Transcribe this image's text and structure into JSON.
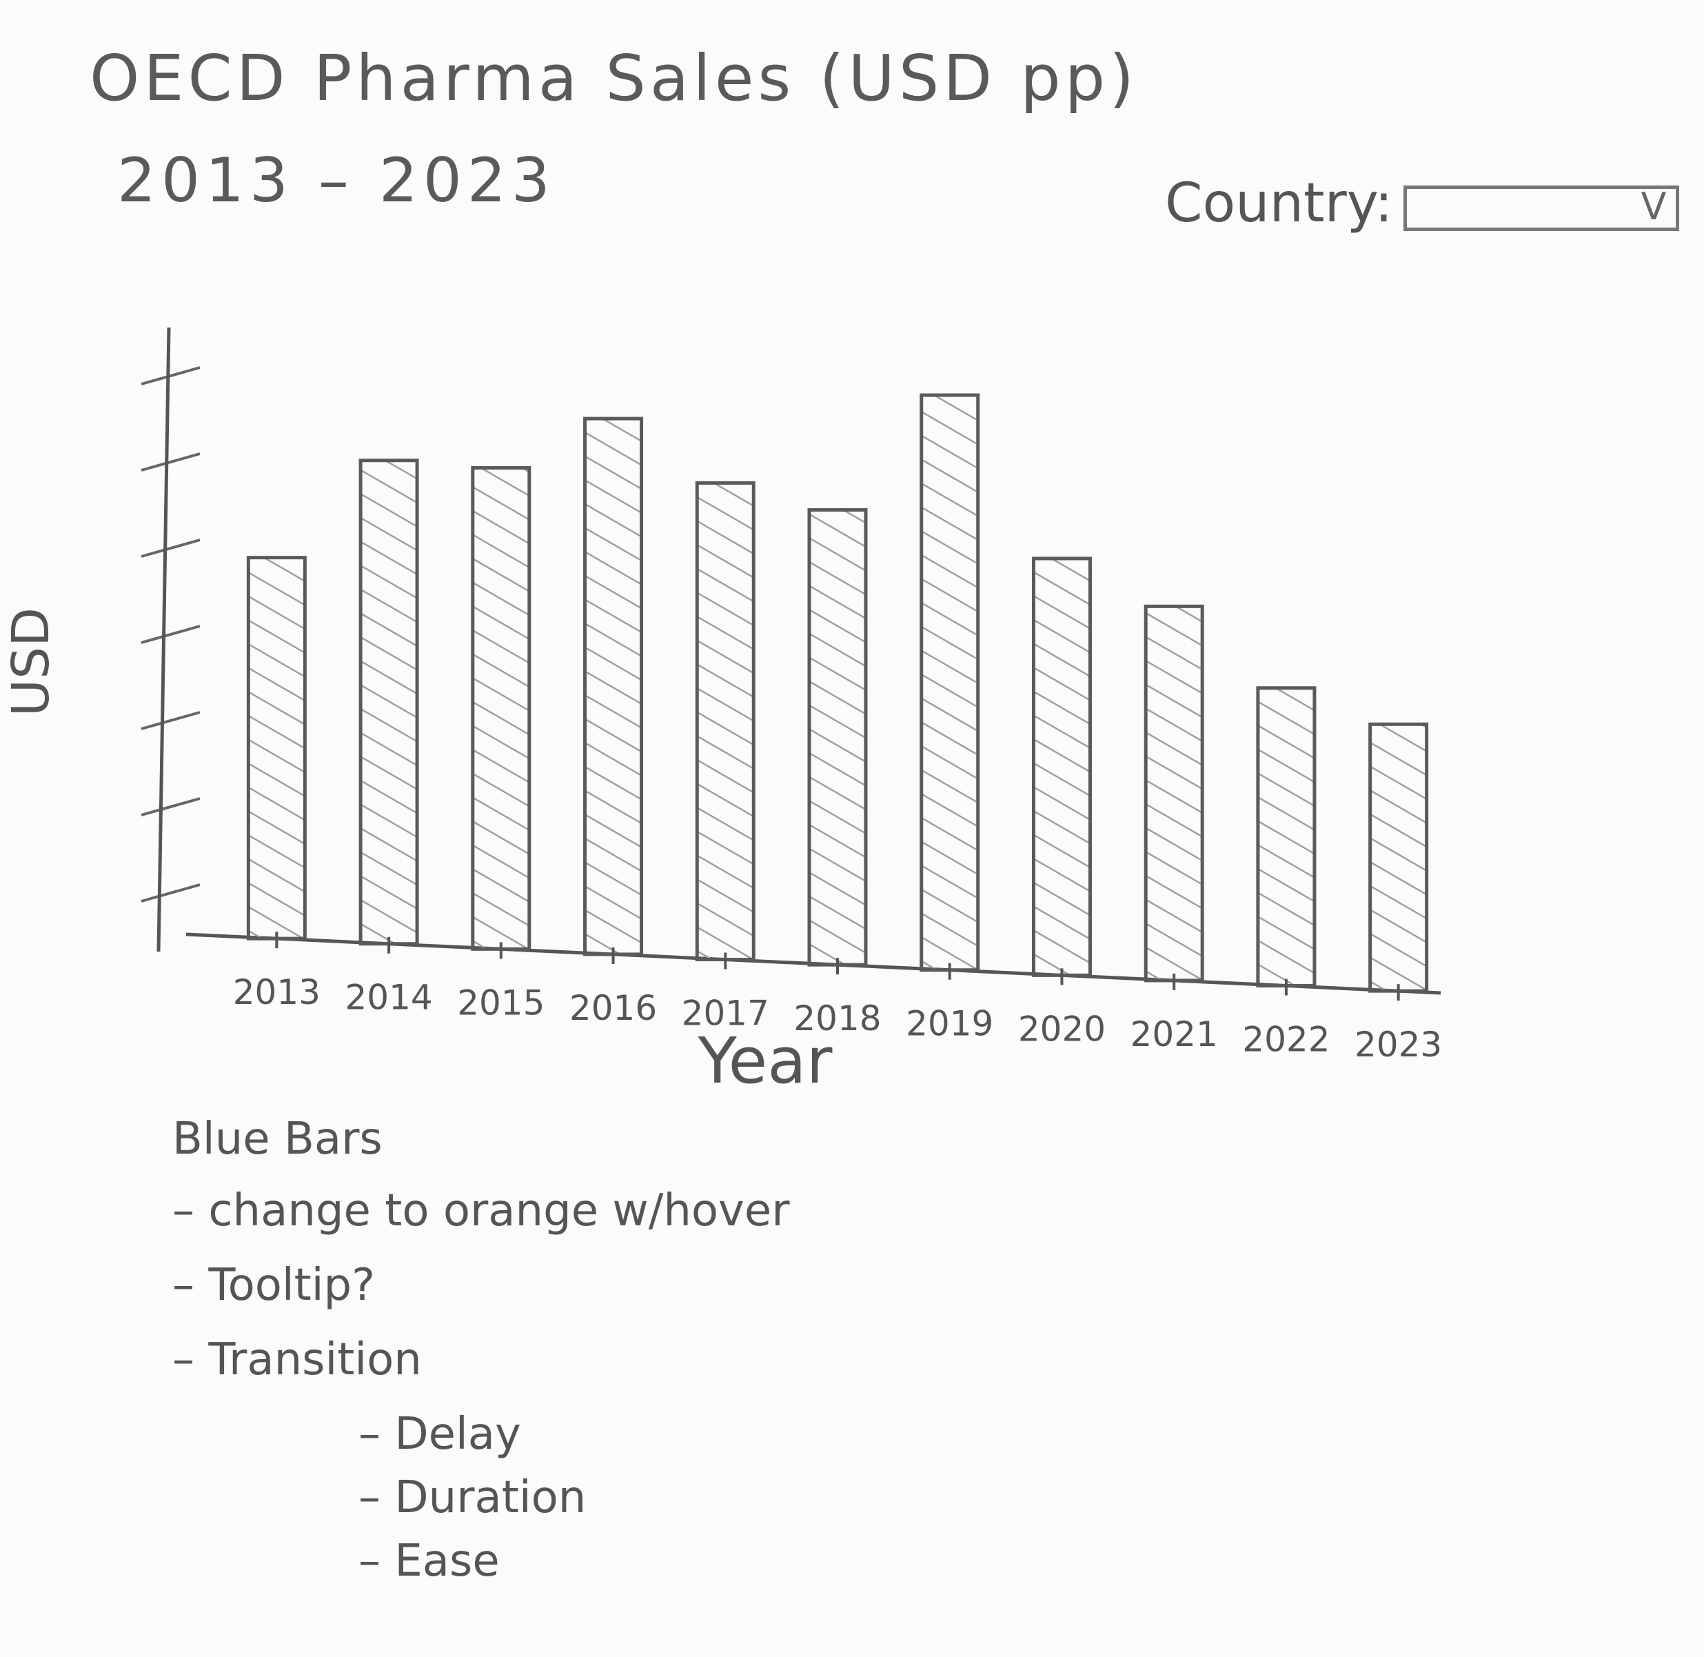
{
  "chart_data": {
    "type": "bar",
    "title": "OECD Pharma Sales (USD pp)",
    "subtitle": "2013 – 2023",
    "xlabel": "Year",
    "ylabel": "USD",
    "categories": [
      "2013",
      "2014",
      "2015",
      "2016",
      "2017",
      "2018",
      "2019",
      "2020",
      "2021",
      "2022",
      "2023"
    ],
    "values": [
      62,
      78,
      77,
      85,
      75,
      71,
      89,
      64,
      57,
      45,
      40
    ],
    "ylim": [
      0,
      100
    ],
    "grid": false,
    "legend": "none"
  },
  "controls": {
    "country_label": "Country:",
    "country_value": "",
    "chevron": "V"
  },
  "notes": {
    "heading": "Blue Bars",
    "items": [
      "change to orange w/hover",
      "Tooltip?",
      "Transition"
    ],
    "sub_items": [
      "Delay",
      "Duration",
      "Ease"
    ]
  },
  "colors": {
    "pencil": "#555555",
    "hatch": "#9a9a9a"
  }
}
